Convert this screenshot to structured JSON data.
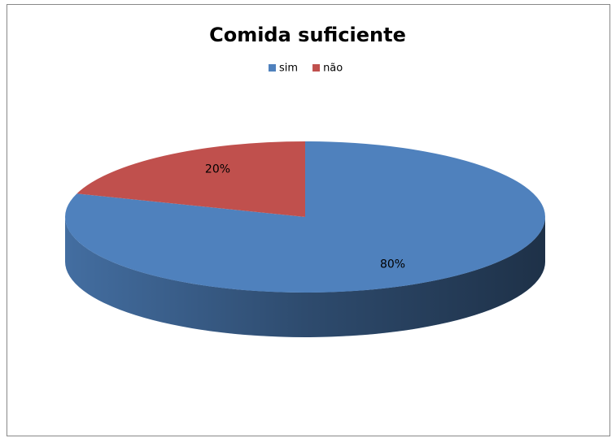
{
  "chart_data": {
    "type": "pie",
    "title": "Comida suficiente",
    "categories": [
      "sim",
      "não"
    ],
    "values": [
      80,
      20
    ],
    "value_labels": [
      "80%",
      "20%"
    ],
    "colors": [
      "#4f81bd",
      "#c0504d"
    ],
    "legend": "top",
    "three_d": true
  }
}
